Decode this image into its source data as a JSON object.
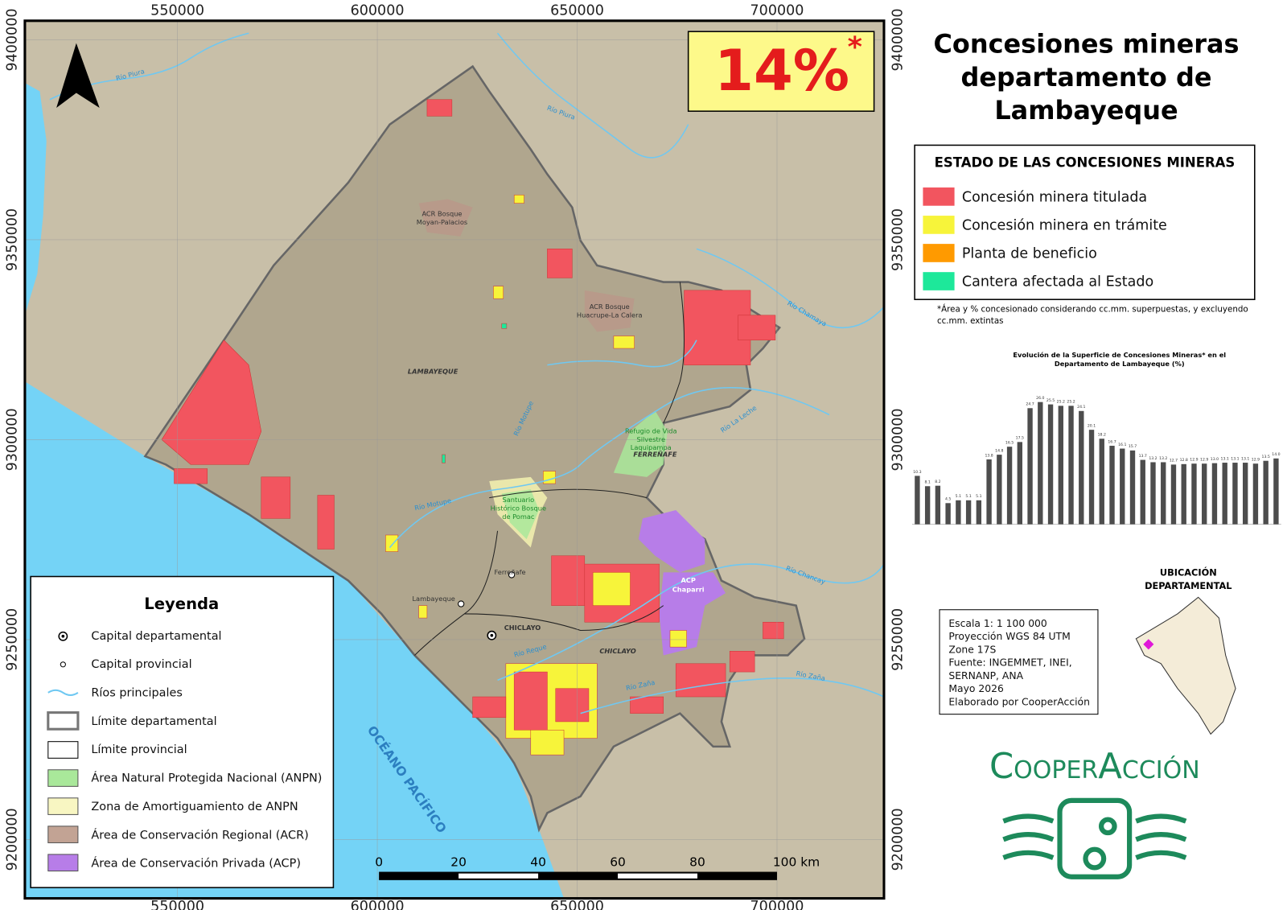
{
  "title": [
    "Concesiones mineras",
    "departamento de",
    "Lambayeque"
  ],
  "highlight": {
    "value": "14%",
    "mark": "*"
  },
  "map": {
    "easting": [
      550000,
      600000,
      650000,
      700000
    ],
    "northing": [
      9400000,
      9350000,
      9300000,
      9250000,
      9200000
    ],
    "places": [
      "ACR Bosque",
      "Moyan-Palacios",
      "ACR Bosque",
      "Huacrupe-La Calera",
      "LAMBAYEQUE",
      "Refugio de Vida",
      "Silvestre",
      "Laquipampa",
      "FERREÑAFE",
      "Santuario",
      "Histórico Bosque",
      "de Pomac",
      "ACP",
      "Chaparri",
      "Ferreñafe",
      "Lambayeque",
      "CHICLAYO",
      "CHICLAYO"
    ],
    "rivers": [
      "Río Piura",
      "Río Piura",
      "Río Chamaya",
      "Río La Leche",
      "Río Motupe",
      "Río Motupe",
      "Río Chancay",
      "Río Reque",
      "Río Zaña",
      "Río Zaña"
    ],
    "ocean": "OCÉANO PACÍFICO",
    "scale_bar": [
      "0",
      "20",
      "40",
      "60",
      "80",
      "100 km"
    ]
  },
  "status_legend": {
    "title": "ESTADO DE LAS CONCESIONES MINERAS",
    "items": [
      "Concesión minera titulada",
      "Concesión minera en trámite",
      "Planta de beneficio",
      "Cantera afectada al Estado"
    ]
  },
  "note": [
    "*Área y % concesionado considerando cc.mm. superpuestas, y excluyendo",
    "cc.mm. extintas"
  ],
  "chart_data": {
    "type": "bar",
    "title": [
      "Evolución de la Superficie de Concesiones Mineras* en el",
      "Departamento de Lambayeque (%)"
    ],
    "categories": [
      null,
      null,
      null,
      null,
      null,
      null,
      null,
      null,
      null,
      null,
      null,
      null,
      null,
      null,
      null,
      null,
      null,
      null,
      null,
      null,
      null,
      null,
      null,
      null,
      null,
      null,
      null,
      null,
      null,
      null,
      null,
      null,
      null,
      null,
      null,
      null
    ],
    "values": [
      10.3,
      8.1,
      8.2,
      4.5,
      5.1,
      5.1,
      5.1,
      13.8,
      14.8,
      16.5,
      17.5,
      24.7,
      26.0,
      25.5,
      25.2,
      25.2,
      24.1,
      20.1,
      18.2,
      16.7,
      16.1,
      15.7,
      13.7,
      13.2,
      13.2,
      12.7,
      12.8,
      12.9,
      12.9,
      13.0,
      13.1,
      13.1,
      13.1,
      12.9,
      13.5,
      14.0
    ],
    "value_labels": [
      "10.3",
      "8.1",
      "8.2",
      "4.5",
      "5.1",
      "5.1",
      "5.1",
      "13.8",
      "14.8",
      "16.5",
      "17.5",
      "24.7",
      "26.0",
      "25.5",
      "25.2",
      "25.2",
      "24.1",
      "20.1",
      "18.2",
      "16.7",
      "16.1",
      "15.7",
      "13.7",
      "13.2",
      "13.2",
      "12.7",
      "12.8",
      "12.9",
      "12.9",
      "13.0",
      "13.1",
      "13.1",
      "13.1",
      "12.9",
      "13.5",
      "14.0"
    ],
    "color": "#4d4d4d",
    "ylim": [
      0,
      30
    ]
  },
  "legend": {
    "title": "Leyenda",
    "items": [
      "Capital departamental",
      "Capital provincial",
      "Ríos principales",
      "Límite departamental",
      "Límite provincial",
      "Área Natural Protegida Nacional (ANPN)",
      "Zona de Amortiguamiento de ANPN",
      "Área de Conservación Regional (ACR)",
      "Área de Conservación Privada (ACP)"
    ]
  },
  "info": [
    "Escala 1: 1 100 000",
    "Proyección WGS 84 UTM",
    "Zone 17S",
    "Fuente: INGEMMET, INEI,",
    "SERNANP, ANA",
    "Mayo 2026",
    "Elaborado por CooperAcción"
  ],
  "location": [
    "UBICACIÓN",
    "DEPARTAMENTAL"
  ],
  "logo": "CooperAcción"
}
